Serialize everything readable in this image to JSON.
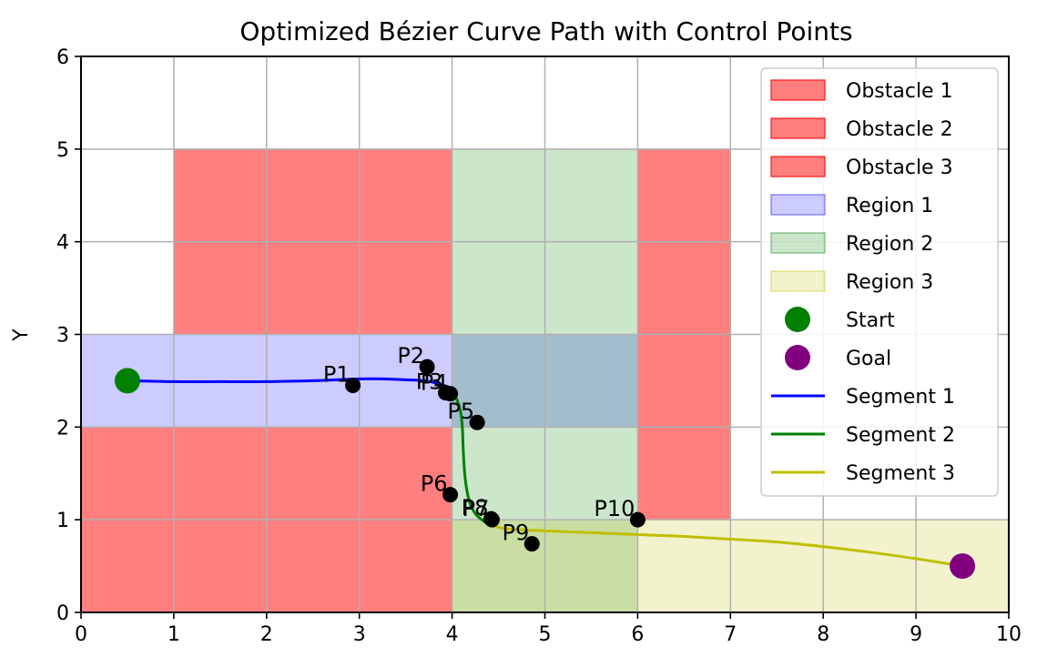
{
  "chart_data": {
    "type": "scatter",
    "title": "Optimized Bézier Curve Path with Control Points",
    "xlabel": "",
    "ylabel": "Y",
    "xlim": [
      0,
      10
    ],
    "ylim": [
      0,
      6
    ],
    "xticks": [
      0,
      1,
      2,
      3,
      4,
      5,
      6,
      7,
      8,
      9,
      10
    ],
    "yticks": [
      0,
      1,
      2,
      3,
      4,
      5,
      6
    ],
    "grid": true,
    "legend_placement": "upper-right",
    "rectangles": [
      {
        "name": "Obstacle 1",
        "x0": 1,
        "x1": 4,
        "y0": 3,
        "y1": 5,
        "color": "#ff0000",
        "alpha": 0.5,
        "legend": true
      },
      {
        "name": "Obstacle 2",
        "x0": 0,
        "x1": 4,
        "y0": 0,
        "y1": 2,
        "color": "#ff0000",
        "alpha": 0.5,
        "legend": true
      },
      {
        "name": "Obstacle 3",
        "x0": 6,
        "x1": 7,
        "y0": 1,
        "y1": 5,
        "color": "#ff0000",
        "alpha": 0.5,
        "legend": true
      },
      {
        "name": "Region 1",
        "x0": 0,
        "x1": 6,
        "y0": 2,
        "y1": 3,
        "color": "#0000ff",
        "alpha": 0.2,
        "legend": true
      },
      {
        "name": "Region 2",
        "x0": 4,
        "x1": 6,
        "y0": 0,
        "y1": 5,
        "color": "#008000",
        "alpha": 0.2,
        "legend": true
      },
      {
        "name": "Region 3",
        "x0": 4,
        "x1": 10,
        "y0": 0,
        "y1": 1,
        "color": "#bfbf00",
        "alpha": 0.2,
        "legend": true
      }
    ],
    "markers": [
      {
        "name": "Start",
        "x": 0.5,
        "y": 2.5,
        "color": "#008000"
      },
      {
        "name": "Goal",
        "x": 9.5,
        "y": 0.5,
        "color": "#800080"
      }
    ],
    "control_points": [
      {
        "label": "P1",
        "x": 2.93,
        "y": 2.45
      },
      {
        "label": "P2",
        "x": 3.73,
        "y": 2.65
      },
      {
        "label": "P3",
        "x": 3.93,
        "y": 2.37
      },
      {
        "label": "P4",
        "x": 3.98,
        "y": 2.36
      },
      {
        "label": "P5",
        "x": 4.27,
        "y": 2.05
      },
      {
        "label": "P6",
        "x": 3.98,
        "y": 1.27
      },
      {
        "label": "P7",
        "x": 4.43,
        "y": 1.0
      },
      {
        "label": "P8",
        "x": 4.42,
        "y": 1.01
      },
      {
        "label": "P9",
        "x": 4.86,
        "y": 0.74
      },
      {
        "label": "P10",
        "x": 6.0,
        "y": 1.0
      }
    ],
    "series": [
      {
        "name": "Segment 1",
        "color": "#0000ff",
        "x": [
          0.5,
          1.0,
          1.5,
          2.0,
          2.5,
          2.75,
          3.0,
          3.25,
          3.5,
          3.7,
          3.85,
          3.95
        ],
        "y": [
          2.5,
          2.49,
          2.49,
          2.49,
          2.5,
          2.51,
          2.52,
          2.52,
          2.51,
          2.5,
          2.47,
          2.43
        ]
      },
      {
        "name": "Segment 2",
        "color": "#008000",
        "x": [
          3.95,
          4.0,
          4.05,
          4.09,
          4.11,
          4.12,
          4.14,
          4.18,
          4.24,
          4.32,
          4.42
        ],
        "y": [
          2.43,
          2.38,
          2.3,
          2.17,
          2.0,
          1.75,
          1.45,
          1.22,
          1.08,
          1.0,
          0.94
        ]
      },
      {
        "name": "Segment 3",
        "color": "#bfbf00",
        "x": [
          4.42,
          4.6,
          5.0,
          5.5,
          6.0,
          6.5,
          7.0,
          7.5,
          8.0,
          8.5,
          9.0,
          9.5
        ],
        "y": [
          0.94,
          0.9,
          0.88,
          0.86,
          0.84,
          0.82,
          0.79,
          0.76,
          0.71,
          0.65,
          0.58,
          0.5
        ]
      }
    ],
    "legend": [
      {
        "label": "Obstacle 1",
        "kind": "patch",
        "color": "#ff0000",
        "alpha": 0.5
      },
      {
        "label": "Obstacle 2",
        "kind": "patch",
        "color": "#ff0000",
        "alpha": 0.5
      },
      {
        "label": "Obstacle 3",
        "kind": "patch",
        "color": "#ff0000",
        "alpha": 0.5
      },
      {
        "label": "Region 1",
        "kind": "patch",
        "color": "#0000ff",
        "alpha": 0.2
      },
      {
        "label": "Region 2",
        "kind": "patch",
        "color": "#008000",
        "alpha": 0.2
      },
      {
        "label": "Region 3",
        "kind": "patch",
        "color": "#bfbf00",
        "alpha": 0.2
      },
      {
        "label": "Start",
        "kind": "marker",
        "color": "#008000"
      },
      {
        "label": "Goal",
        "kind": "marker",
        "color": "#800080"
      },
      {
        "label": "Segment 1",
        "kind": "line",
        "color": "#0000ff"
      },
      {
        "label": "Segment 2",
        "kind": "line",
        "color": "#008000"
      },
      {
        "label": "Segment 3",
        "kind": "line",
        "color": "#bfbf00"
      }
    ]
  }
}
